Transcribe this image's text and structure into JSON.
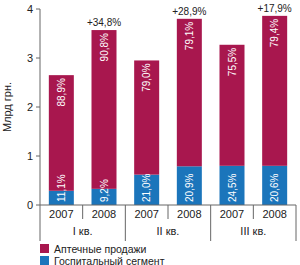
{
  "chart_data": {
    "type": "bar",
    "stacked": true,
    "y_label": "Млрд грн.",
    "categories": [
      "2007",
      "2008",
      "2007",
      "2008",
      "2007",
      "2008"
    ],
    "groups": [
      {
        "label": "I кв.",
        "categories": [
          0,
          1
        ]
      },
      {
        "label": "II кв.",
        "categories": [
          2,
          3
        ]
      },
      {
        "label": "III кв.",
        "categories": [
          4,
          5
        ]
      }
    ],
    "series": [
      {
        "name": "Госпитальный сегмент",
        "color": "#1b75bb",
        "values": [
          0.29,
          0.33,
          0.62,
          0.79,
          0.8,
          0.8
        ],
        "share_labels": [
          "11,1%",
          "9,2%",
          "21,0%",
          "20,9%",
          "24,5%",
          "20,6%"
        ]
      },
      {
        "name": "Аптечные продажи",
        "color": "#a8174e",
        "values": [
          2.36,
          3.24,
          2.33,
          3.01,
          2.47,
          3.06
        ],
        "share_labels": [
          "88,9%",
          "90,8%",
          "79,0%",
          "79,1%",
          "75,5%",
          "79,4%"
        ]
      }
    ],
    "growth_labels": [
      null,
      "+34,8%",
      null,
      "+28,9%",
      null,
      "+17,9%"
    ],
    "ylim": [
      0,
      4
    ],
    "yticks": [
      0,
      1,
      2,
      3,
      4
    ],
    "legend": "bottom"
  }
}
